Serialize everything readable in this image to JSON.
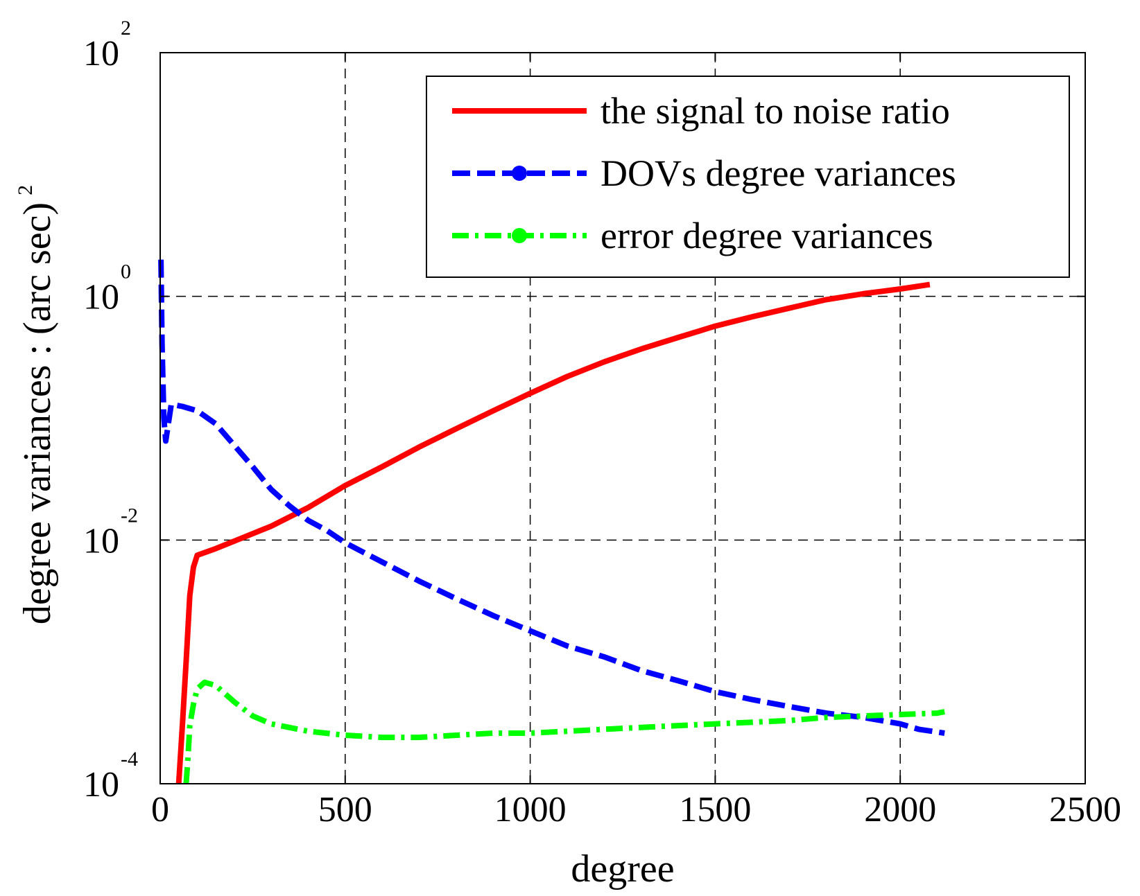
{
  "chart_data": {
    "type": "line",
    "title": "",
    "xlabel": "degree",
    "ylabel": "degree variances : (arc sec)",
    "ylabel_exponent": "2",
    "xlim": [
      0,
      2500
    ],
    "ylim": [
      0.0001,
      100
    ],
    "yscale": "log",
    "grid": true,
    "legend_position": "top-right",
    "x_ticks": [
      {
        "value": 0,
        "label": "0"
      },
      {
        "value": 500,
        "label": "500"
      },
      {
        "value": 1000,
        "label": "1000"
      },
      {
        "value": 1500,
        "label": "1500"
      },
      {
        "value": 2000,
        "label": "2000"
      },
      {
        "value": 2500,
        "label": "2500"
      }
    ],
    "y_ticks": [
      {
        "value": 0.0001,
        "base": "10",
        "exponent": "-4"
      },
      {
        "value": 0.01,
        "base": "10",
        "exponent": "-2"
      },
      {
        "value": 1,
        "base": "10",
        "exponent": "0"
      },
      {
        "value": 100,
        "base": "10",
        "exponent": "2"
      }
    ],
    "series": [
      {
        "name": "the signal to noise ratio",
        "color": "#ff0000",
        "style": "solid",
        "marker": "none",
        "x": [
          50,
          60,
          70,
          80,
          90,
          100,
          150,
          200,
          300,
          400,
          500,
          600,
          700,
          800,
          900,
          1000,
          1100,
          1200,
          1300,
          1400,
          1500,
          1600,
          1700,
          1800,
          1900,
          2000,
          2080
        ],
        "y": [
          0.0001,
          0.0003,
          0.001,
          0.0035,
          0.006,
          0.0075,
          0.0085,
          0.0098,
          0.013,
          0.0185,
          0.028,
          0.04,
          0.058,
          0.082,
          0.115,
          0.16,
          0.22,
          0.29,
          0.37,
          0.46,
          0.57,
          0.68,
          0.8,
          0.94,
          1.05,
          1.15,
          1.25
        ]
      },
      {
        "name": "DOVs degree variances",
        "color": "#0000ff",
        "style": "dashed",
        "marker": "circle",
        "x": [
          2,
          5,
          10,
          15,
          30,
          60,
          100,
          150,
          200,
          250,
          300,
          350,
          400,
          450,
          500,
          600,
          700,
          800,
          900,
          1000,
          1100,
          1200,
          1300,
          1400,
          1500,
          1600,
          1700,
          1800,
          1900,
          2000,
          2050,
          2120
        ],
        "y": [
          2.0,
          0.4,
          0.1,
          0.065,
          0.13,
          0.125,
          0.115,
          0.09,
          0.06,
          0.04,
          0.026,
          0.019,
          0.0145,
          0.012,
          0.0095,
          0.0066,
          0.0046,
          0.0033,
          0.0024,
          0.0018,
          0.00135,
          0.0011,
          0.00085,
          0.0007,
          0.00057,
          0.00049,
          0.00043,
          0.00038,
          0.00035,
          0.00031,
          0.00028,
          0.00026
        ]
      },
      {
        "name": "error degree variances",
        "color": "#00ff00",
        "style": "dash-dot",
        "marker": "circle",
        "x": [
          70,
          75,
          80,
          90,
          100,
          120,
          150,
          200,
          250,
          300,
          400,
          500,
          600,
          700,
          800,
          900,
          1000,
          1100,
          1200,
          1300,
          1400,
          1500,
          1600,
          1700,
          1800,
          1900,
          2000,
          2100,
          2120
        ],
        "y": [
          0.0001,
          0.00016,
          0.0003,
          0.00045,
          0.0006,
          0.00068,
          0.00064,
          0.00047,
          0.00036,
          0.00031,
          0.00027,
          0.00025,
          0.00024,
          0.00024,
          0.00025,
          0.00026,
          0.00026,
          0.00027,
          0.00028,
          0.00029,
          0.0003,
          0.00031,
          0.00032,
          0.00033,
          0.00035,
          0.00036,
          0.00037,
          0.00038,
          0.00039
        ]
      }
    ]
  }
}
